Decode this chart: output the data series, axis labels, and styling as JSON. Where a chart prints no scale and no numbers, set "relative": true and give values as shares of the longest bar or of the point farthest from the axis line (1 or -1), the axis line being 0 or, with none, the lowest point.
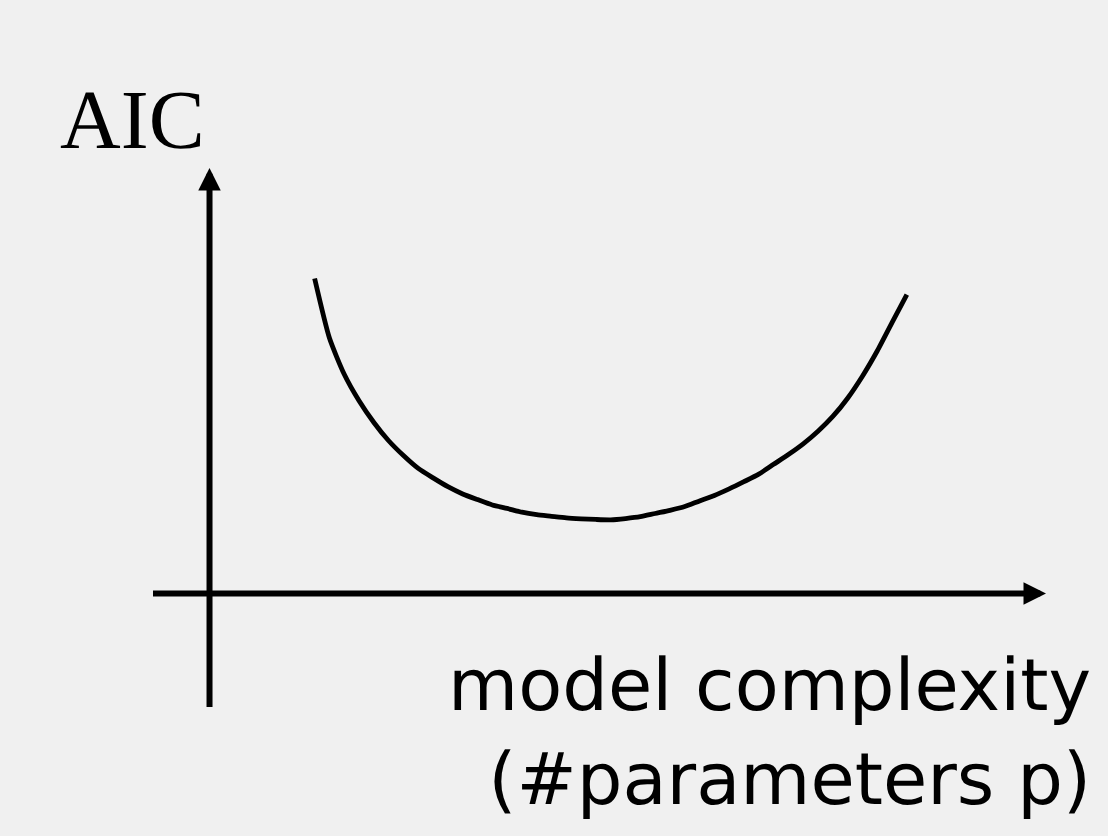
{
  "chart_data": {
    "type": "line",
    "relative": true,
    "ylabel": "AIC",
    "xlabel": "model complexity\n(#parameters p)",
    "categories": [
      null,
      null,
      null,
      null,
      null,
      null,
      null,
      null,
      null,
      null,
      null,
      null,
      null,
      null,
      null,
      null,
      null,
      null,
      null,
      null,
      null,
      null,
      null,
      null,
      null,
      null,
      null,
      null,
      null,
      null,
      null,
      null,
      null,
      null,
      null,
      null,
      null,
      null,
      null,
      null,
      null
    ],
    "series": [
      {
        "color": "#000000",
        "values": [
          1,
          0.811,
          0.696,
          0.612,
          0.543,
          0.485,
          0.438,
          0.397,
          0.367,
          0.339,
          0.316,
          0.298,
          0.281,
          0.27,
          0.258,
          0.25,
          0.245,
          0.24,
          0.237,
          0.235,
          0.234,
          0.238,
          0.244,
          0.254,
          0.264,
          0.276,
          0.294,
          0.311,
          0.332,
          0.355,
          0.379,
          0.41,
          0.441,
          0.475,
          0.515,
          0.562,
          0.62,
          0.69,
          0.77,
          0.86,
          0.949
        ]
      }
    ]
  }
}
